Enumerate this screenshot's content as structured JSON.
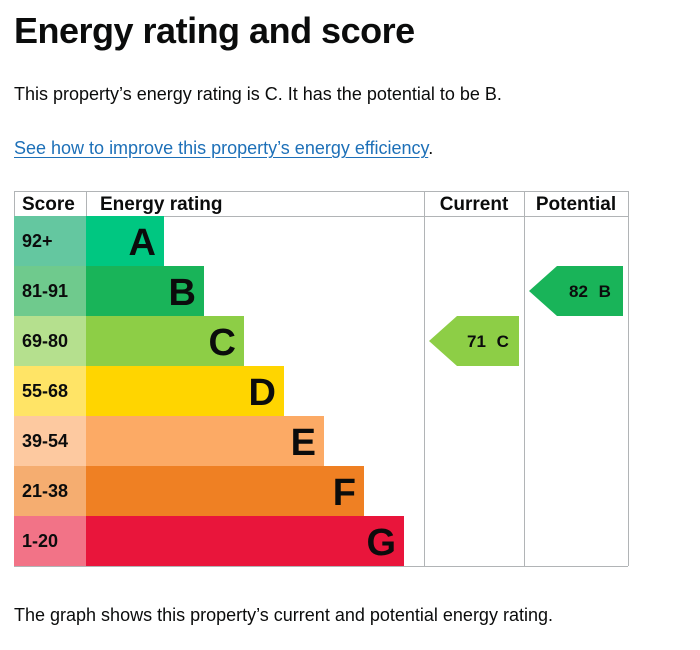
{
  "page": {
    "title": "Energy rating and score",
    "summary": "This property’s energy rating is C. It has the potential to be B.",
    "link_text": "See how to improve this property’s energy efficiency",
    "link_suffix": ".",
    "footer": "The graph shows this property’s current and potential energy rating."
  },
  "chart_data": {
    "type": "bar",
    "headers": {
      "score": "Score",
      "rating": "Energy rating",
      "current": "Current",
      "potential": "Potential"
    },
    "bands": [
      {
        "letter": "A",
        "score": "92+",
        "color": "#00c781",
        "score_bg": "#64c7a0"
      },
      {
        "letter": "B",
        "score": "81-91",
        "color": "#19b459",
        "score_bg": "#6fca8d"
      },
      {
        "letter": "C",
        "score": "69-80",
        "color": "#8dce46",
        "score_bg": "#b5e08e"
      },
      {
        "letter": "D",
        "score": "55-68",
        "color": "#ffd500",
        "score_bg": "#ffe466"
      },
      {
        "letter": "E",
        "score": "39-54",
        "color": "#fcaa65",
        "score_bg": "#fdc9a0"
      },
      {
        "letter": "F",
        "score": "21-38",
        "color": "#ef8023",
        "score_bg": "#f5ad70"
      },
      {
        "letter": "G",
        "score": "1-20",
        "color": "#e9153b",
        "score_bg": "#f27387"
      }
    ],
    "current": {
      "value": 71,
      "band": "C",
      "label": "71 C",
      "color": "#8dce46"
    },
    "potential": {
      "value": 82,
      "band": "B",
      "label": "82 B",
      "color": "#19b459"
    }
  }
}
